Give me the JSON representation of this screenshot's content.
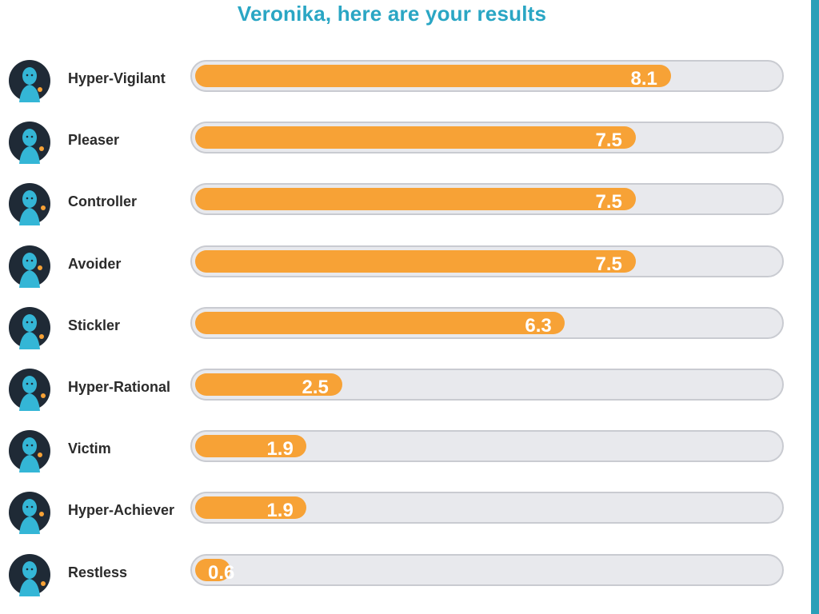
{
  "header": {
    "title": "Veronika, here are your results"
  },
  "colors": {
    "title": "#2aa6c4",
    "bar_fill": "#f7a236",
    "bar_track": "#e8e9ed",
    "avatar_dark": "#1f2a36",
    "avatar_accent": "#34b6d6",
    "edge_accent": "#2a9fb8"
  },
  "chart_data": {
    "type": "bar",
    "orientation": "horizontal",
    "title": "Veronika, here are your results",
    "xlim": [
      0,
      10
    ],
    "grid": false,
    "legend": "none",
    "categories": [
      "Hyper-Vigilant",
      "Pleaser",
      "Controller",
      "Avoider",
      "Stickler",
      "Hyper-Rational",
      "Victim",
      "Hyper-Achiever",
      "Restless"
    ],
    "values": [
      8.1,
      7.5,
      7.5,
      7.5,
      6.3,
      2.5,
      1.9,
      1.9,
      0.6
    ],
    "value_labels": [
      "8.1",
      "7.5",
      "7.5",
      "7.5",
      "6.3",
      "2.5",
      "1.9",
      "1.9",
      "0.6"
    ],
    "icons": [
      "hyper-vigilant-avatar-icon",
      "pleaser-avatar-icon",
      "controller-avatar-icon",
      "avoider-avatar-icon",
      "stickler-avatar-icon",
      "hyper-rational-avatar-icon",
      "victim-avatar-icon",
      "hyper-achiever-avatar-icon",
      "restless-avatar-icon"
    ]
  }
}
